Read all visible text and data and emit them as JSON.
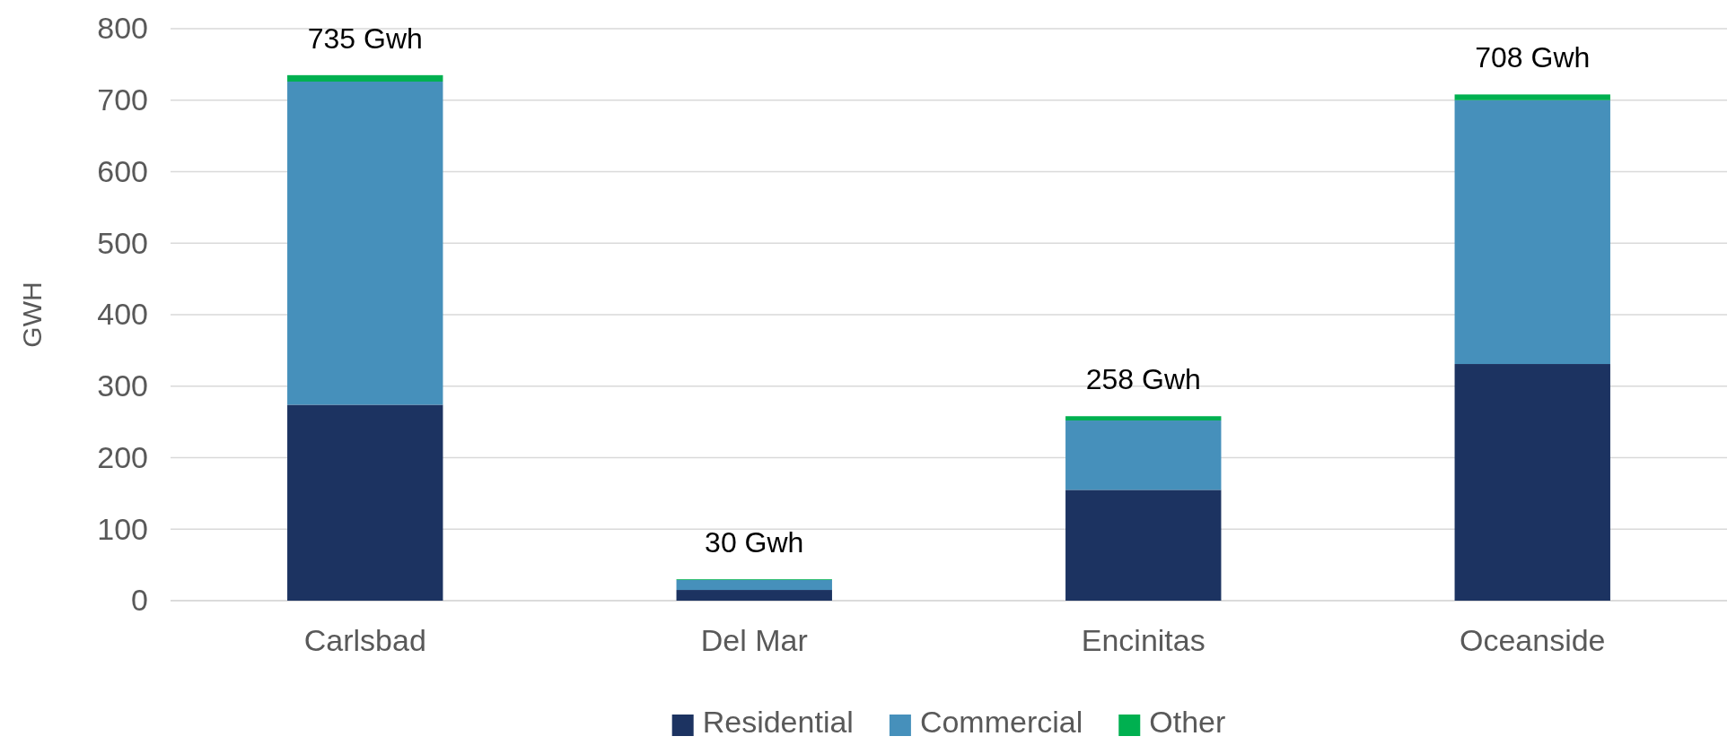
{
  "chart_data": {
    "type": "bar",
    "stacked": true,
    "ylabel": "GWH",
    "categories": [
      "Carlsbad",
      "Del Mar",
      "Encinitas",
      "Oceanside"
    ],
    "series": [
      {
        "name": "Residential",
        "color": "#1c3361",
        "values": [
          274,
          15,
          155,
          331
        ]
      },
      {
        "name": "Commercial",
        "color": "#4690bb",
        "values": [
          452,
          14,
          97,
          369
        ]
      },
      {
        "name": "Other",
        "color": "#00b050",
        "values": [
          9,
          1,
          6,
          8
        ]
      }
    ],
    "totals": [
      "735 Gwh",
      "30 Gwh",
      "258 Gwh",
      "708 Gwh"
    ],
    "ylim": [
      0,
      800
    ],
    "yticks": [
      0,
      100,
      200,
      300,
      400,
      500,
      600,
      700,
      800
    ],
    "grid": "y",
    "legend": "bottom"
  }
}
